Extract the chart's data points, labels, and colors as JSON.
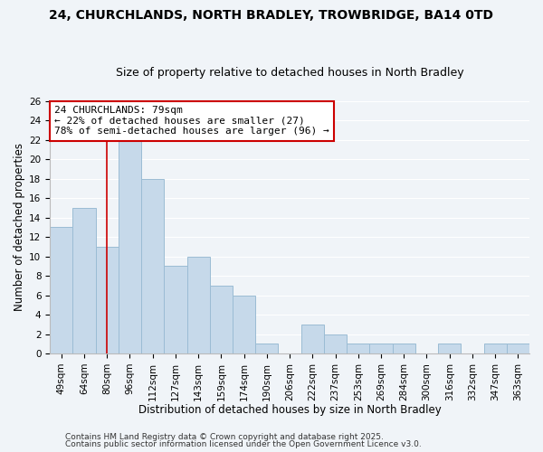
{
  "title1": "24, CHURCHLANDS, NORTH BRADLEY, TROWBRIDGE, BA14 0TD",
  "title2": "Size of property relative to detached houses in North Bradley",
  "xlabel": "Distribution of detached houses by size in North Bradley",
  "ylabel": "Number of detached properties",
  "bin_labels": [
    "49sqm",
    "64sqm",
    "80sqm",
    "96sqm",
    "112sqm",
    "127sqm",
    "143sqm",
    "159sqm",
    "174sqm",
    "190sqm",
    "206sqm",
    "222sqm",
    "237sqm",
    "253sqm",
    "269sqm",
    "284sqm",
    "300sqm",
    "316sqm",
    "332sqm",
    "347sqm",
    "363sqm"
  ],
  "bar_heights": [
    13,
    15,
    11,
    22,
    18,
    9,
    10,
    7,
    6,
    1,
    0,
    3,
    2,
    1,
    1,
    1,
    0,
    1,
    0,
    1,
    1
  ],
  "bar_color": "#c6d9ea",
  "bar_edge_color": "#9bbcd4",
  "vline_x_index": 2,
  "vline_color": "#cc0000",
  "ylim": [
    0,
    26
  ],
  "yticks": [
    0,
    2,
    4,
    6,
    8,
    10,
    12,
    14,
    16,
    18,
    20,
    22,
    24,
    26
  ],
  "annotation_text": "24 CHURCHLANDS: 79sqm\n← 22% of detached houses are smaller (27)\n78% of semi-detached houses are larger (96) →",
  "annotation_box_color": "#ffffff",
  "annotation_box_edge": "#cc0000",
  "footer1": "Contains HM Land Registry data © Crown copyright and database right 2025.",
  "footer2": "Contains public sector information licensed under the Open Government Licence v3.0.",
  "bg_color": "#f0f4f8",
  "grid_color": "#ffffff",
  "title_fontsize": 10,
  "subtitle_fontsize": 9,
  "axis_label_fontsize": 8.5,
  "tick_fontsize": 7.5,
  "annotation_fontsize": 8,
  "footer_fontsize": 6.5
}
